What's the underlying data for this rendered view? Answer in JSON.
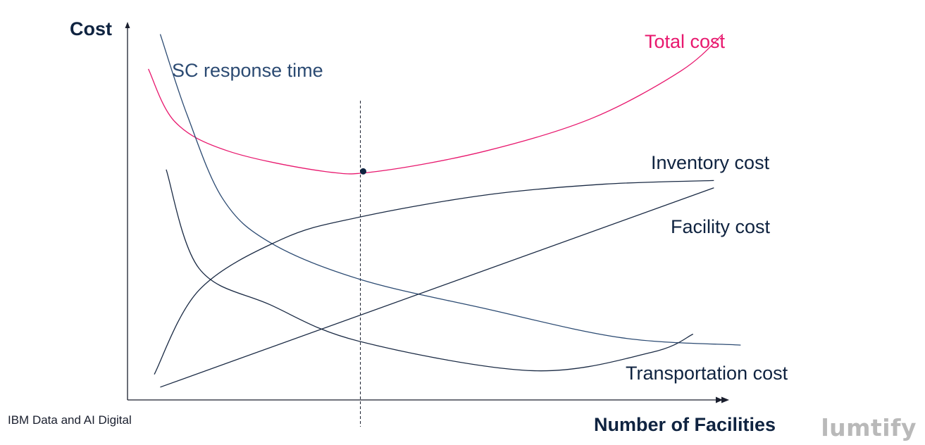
{
  "chart_data": {
    "type": "line",
    "title": "",
    "ylabel": "Cost",
    "xlabel": "Number of Facilities",
    "grid": false,
    "series": [
      {
        "name": "Total cost",
        "color": "#e8186e",
        "points": [
          [
            0.035,
            0.905
          ],
          [
            0.08,
            0.76
          ],
          [
            0.17,
            0.68
          ],
          [
            0.33,
            0.625
          ],
          [
            0.42,
            0.625
          ],
          [
            0.6,
            0.68
          ],
          [
            0.78,
            0.77
          ],
          [
            0.93,
            0.9
          ],
          [
            1.0,
            1.0
          ]
        ]
      },
      {
        "name": "SC response time",
        "color": "#2b4a72",
        "points": [
          [
            0.055,
            1.0
          ],
          [
            0.1,
            0.78
          ],
          [
            0.16,
            0.55
          ],
          [
            0.24,
            0.43
          ],
          [
            0.39,
            0.33
          ],
          [
            0.6,
            0.25
          ],
          [
            0.83,
            0.17
          ],
          [
            1.03,
            0.15
          ]
        ]
      },
      {
        "name": "Inventory cost",
        "color": "#1a2a44",
        "points": [
          [
            0.045,
            0.07
          ],
          [
            0.12,
            0.3
          ],
          [
            0.26,
            0.44
          ],
          [
            0.39,
            0.5
          ],
          [
            0.6,
            0.56
          ],
          [
            0.8,
            0.59
          ],
          [
            0.985,
            0.6
          ]
        ]
      },
      {
        "name": "Facility cost",
        "color": "#1a2a44",
        "points": [
          [
            0.055,
            0.035
          ],
          [
            0.985,
            0.58
          ]
        ]
      },
      {
        "name": "Transportation cost",
        "color": "#1a2a44",
        "points": [
          [
            0.065,
            0.63
          ],
          [
            0.12,
            0.36
          ],
          [
            0.24,
            0.26
          ],
          [
            0.39,
            0.16
          ],
          [
            0.68,
            0.08
          ],
          [
            0.88,
            0.13
          ],
          [
            0.95,
            0.18
          ]
        ]
      }
    ],
    "optimum_marker": {
      "x": 0.39,
      "y": 0.625
    },
    "optimum_line": {
      "x": 0.39
    }
  },
  "labels": {
    "source": "IBM Data and AI Digital",
    "watermark": "lumtify"
  },
  "colors": {
    "axis": "#1a1f2e",
    "text_dark": "#0f2340",
    "total_cost": "#e8186e",
    "sc_response": "#2b4a72"
  }
}
